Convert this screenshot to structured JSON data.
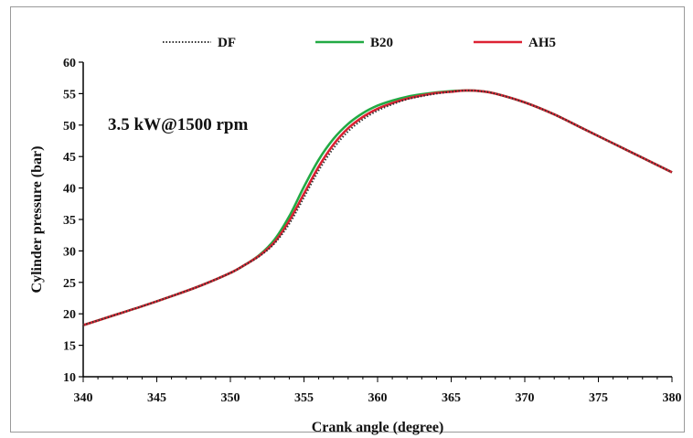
{
  "chart_data": {
    "type": "line",
    "title": "",
    "annotation": "3.5 kW@1500 rpm",
    "xlabel": "Crank angle (degree)",
    "ylabel": "Cylinder pressure (bar)",
    "xlim": [
      340,
      380
    ],
    "ylim": [
      10,
      60
    ],
    "xticks": [
      340,
      345,
      350,
      355,
      360,
      365,
      370,
      375,
      380
    ],
    "yticks": [
      10,
      15,
      20,
      25,
      30,
      35,
      40,
      45,
      50,
      55,
      60
    ],
    "grid": false,
    "legend_position": "top",
    "x": [
      340,
      342,
      344,
      346,
      348,
      350,
      351,
      352,
      353,
      354,
      355,
      356,
      357,
      358,
      359,
      360,
      361,
      362,
      363,
      364,
      365,
      366,
      367,
      368,
      370,
      372,
      374,
      376,
      378,
      380
    ],
    "series": [
      {
        "name": "DF",
        "color": "#333333",
        "style": "dotted",
        "values": [
          18.2,
          19.7,
          21.2,
          22.8,
          24.5,
          26.5,
          27.8,
          29.2,
          31.2,
          34.3,
          38.5,
          42.8,
          46.3,
          49.0,
          50.9,
          52.3,
          53.3,
          54.1,
          54.6,
          55.0,
          55.3,
          55.5,
          55.4,
          55.0,
          53.6,
          51.7,
          49.4,
          47.1,
          44.8,
          42.5
        ]
      },
      {
        "name": "B20",
        "color": "#22aa44",
        "style": "solid",
        "values": [
          18.2,
          19.7,
          21.2,
          22.8,
          24.5,
          26.5,
          27.8,
          29.4,
          31.8,
          35.5,
          40.2,
          44.5,
          47.8,
          50.2,
          51.9,
          53.1,
          53.9,
          54.5,
          54.9,
          55.2,
          55.4,
          55.5,
          55.4,
          55.0,
          53.6,
          51.7,
          49.4,
          47.1,
          44.8,
          42.5
        ]
      },
      {
        "name": "AH5",
        "color": "#dd2233",
        "style": "solid",
        "values": [
          18.2,
          19.7,
          21.2,
          22.8,
          24.5,
          26.5,
          27.8,
          29.3,
          31.4,
          34.8,
          39.1,
          43.4,
          46.9,
          49.5,
          51.3,
          52.6,
          53.5,
          54.2,
          54.7,
          55.1,
          55.3,
          55.5,
          55.4,
          55.0,
          53.6,
          51.7,
          49.4,
          47.1,
          44.8,
          42.5
        ]
      }
    ]
  }
}
